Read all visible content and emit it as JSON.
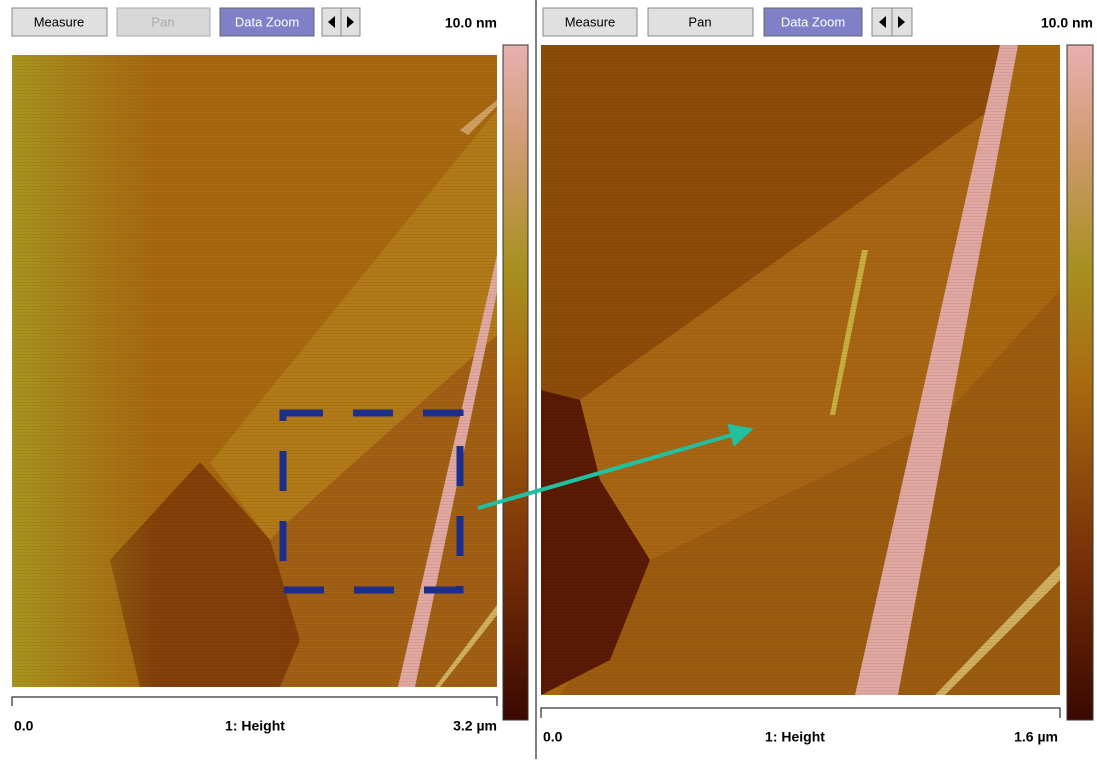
{
  "panels": [
    {
      "buttons": [
        "Measure",
        "Pan",
        "Data Zoom"
      ],
      "scale_max": "10.0 nm",
      "axis": {
        "start": "0.0",
        "label": "1: Height",
        "end": "3.2 µm"
      }
    },
    {
      "buttons": [
        "Measure",
        "Pan",
        "Data Zoom"
      ],
      "scale_max": "10.0 nm",
      "axis": {
        "start": "0.0",
        "label": "1: Height",
        "end": "1.6 µm"
      }
    }
  ]
}
